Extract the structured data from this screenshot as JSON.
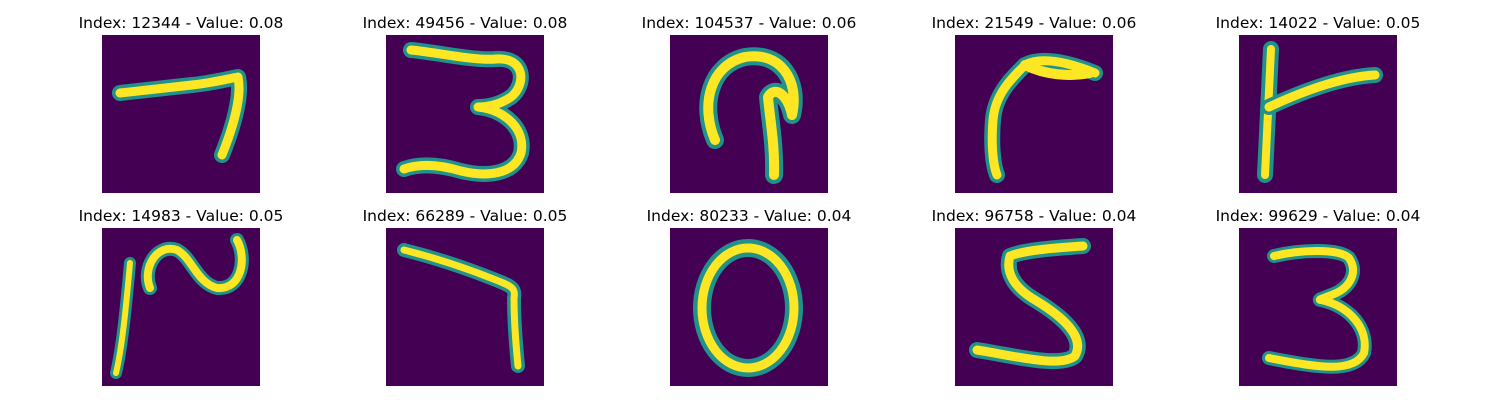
{
  "chart_data": {
    "type": "image_grid",
    "rows": 2,
    "cols": 5,
    "colormap": "viridis",
    "colors": {
      "background": "#440154",
      "stroke_edge": "#21918c",
      "stroke_core": "#fde725"
    },
    "panels": [
      {
        "title": "Index: 12344 - Value: 0.08",
        "index": 12344,
        "value": 0.08,
        "digit": "7"
      },
      {
        "title": "Index: 49456 - Value: 0.08",
        "index": 49456,
        "value": 0.08,
        "digit": "3"
      },
      {
        "title": "Index: 104537 - Value: 0.06",
        "index": 104537,
        "value": 0.06,
        "digit": "9"
      },
      {
        "title": "Index: 21549 - Value: 0.06",
        "index": 21549,
        "value": 0.06,
        "digit": "7"
      },
      {
        "title": "Index: 14022 - Value: 0.05",
        "index": 14022,
        "value": 0.05,
        "digit": "7"
      },
      {
        "title": "Index: 14983 - Value: 0.05",
        "index": 14983,
        "value": 0.05,
        "digit": "2"
      },
      {
        "title": "Index: 66289 - Value: 0.05",
        "index": 66289,
        "value": 0.05,
        "digit": "7"
      },
      {
        "title": "Index: 80233 - Value: 0.04",
        "index": 80233,
        "value": 0.04,
        "digit": "0"
      },
      {
        "title": "Index: 96758 - Value: 0.04",
        "index": 96758,
        "value": 0.04,
        "digit": "5"
      },
      {
        "title": "Index: 99629 - Value: 0.04",
        "index": 99629,
        "value": 0.04,
        "digit": "3"
      }
    ]
  }
}
